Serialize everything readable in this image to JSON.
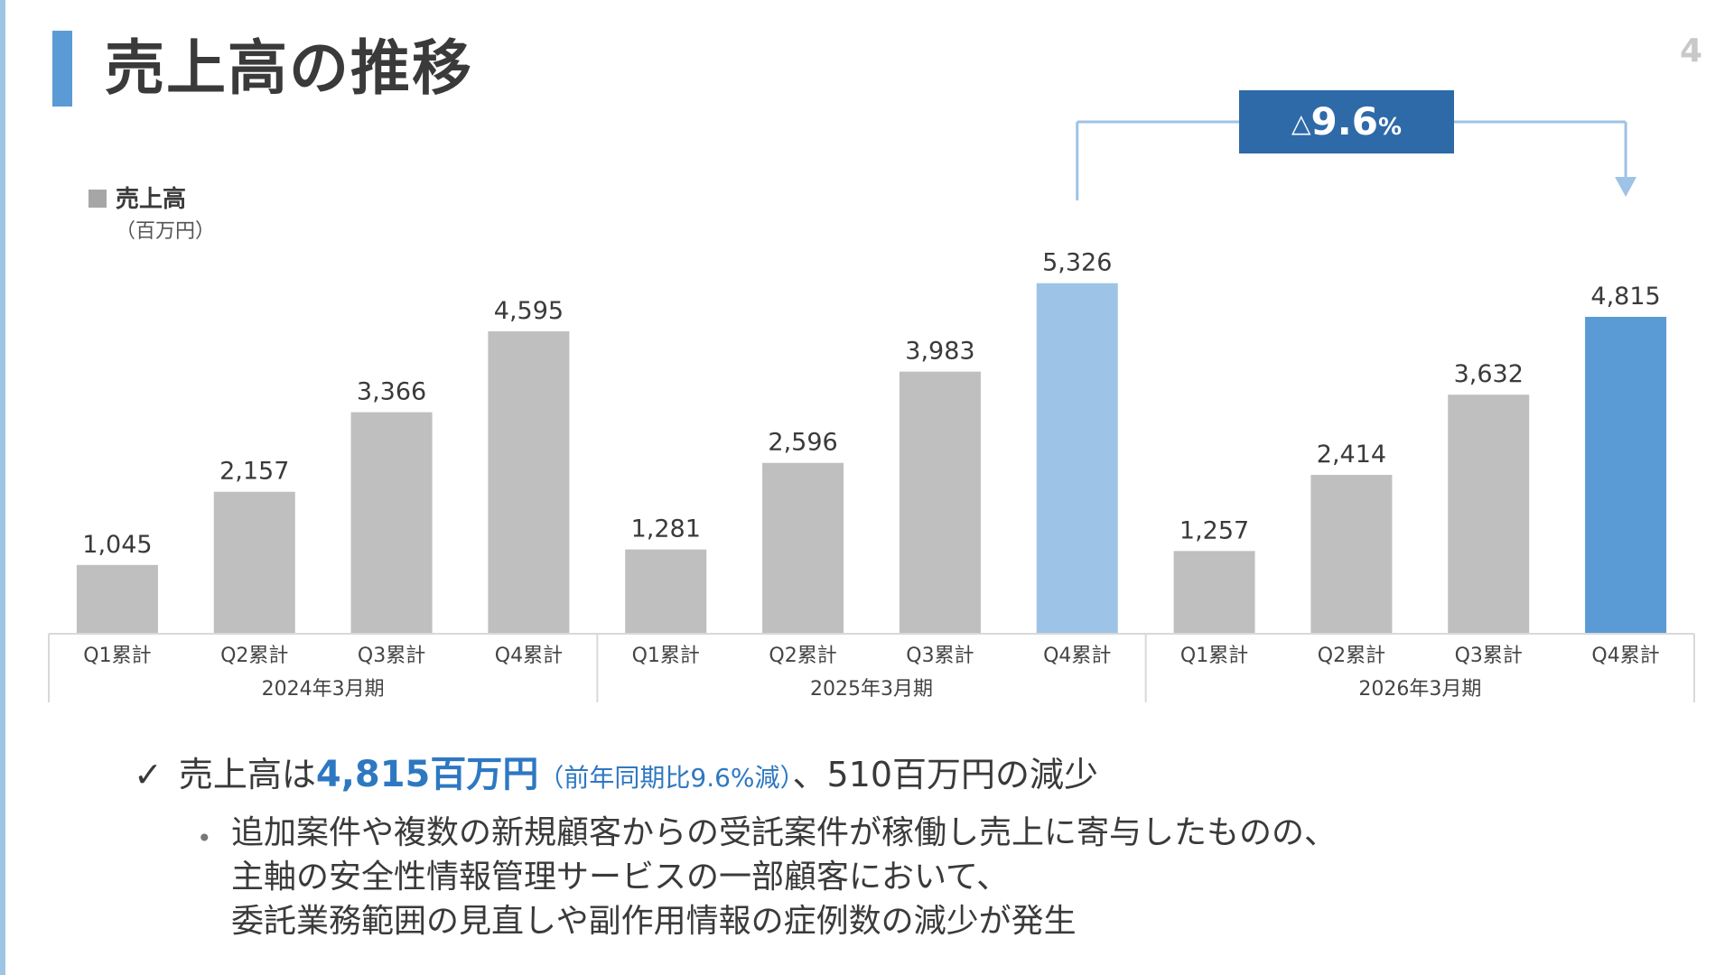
{
  "page": {
    "title": "売上高の推移",
    "page_number": "4"
  },
  "legend": {
    "label": "売上高",
    "unit": "（百万円）",
    "color": "#a6a6a6"
  },
  "colors": {
    "bar_default": "#bfbfbf",
    "bar_prev_q4": "#9dc3e6",
    "bar_current_q4": "#5b9bd5",
    "change_box": "#2e6aa8",
    "highlight_text": "#2e78c2",
    "connector": "#9dc3e6"
  },
  "change_callout": {
    "delta_symbol": "△",
    "value": "9.6",
    "percent": "%"
  },
  "chart_data": {
    "type": "bar",
    "title": "",
    "xlabel": "",
    "ylabel": "",
    "unit": "百万円",
    "ylim": [
      0,
      6200
    ],
    "groups": [
      {
        "label": "2024年3月期",
        "categories": [
          "Q1累計",
          "Q2累計",
          "Q3累計",
          "Q4累計"
        ],
        "values": [
          1045,
          2157,
          3366,
          4595
        ],
        "value_labels": [
          "1,045",
          "2,157",
          "3,366",
          "4,595"
        ]
      },
      {
        "label": "2025年3月期",
        "categories": [
          "Q1累計",
          "Q2累計",
          "Q3累計",
          "Q4累計"
        ],
        "values": [
          1281,
          2596,
          3983,
          5326
        ],
        "value_labels": [
          "1,281",
          "2,596",
          "3,983",
          "5,326"
        ]
      },
      {
        "label": "2026年3月期",
        "categories": [
          "Q1累計",
          "Q2累計",
          "Q3累計",
          "Q4累計"
        ],
        "values": [
          1257,
          2414,
          3632,
          4815
        ],
        "value_labels": [
          "1,257",
          "2,414",
          "3,632",
          "4,815"
        ]
      }
    ],
    "series": [
      {
        "name": "売上高"
      }
    ],
    "legend": "top-left",
    "grid": false
  },
  "summary": {
    "check": "✓",
    "prefix": "売上高は",
    "highlight": "4,815百万円",
    "paren": "（前年同期比9.6%減）",
    "suffix": "、510百万円の減少"
  },
  "detail": {
    "bullet": "•",
    "lines": [
      "追加案件や複数の新規顧客からの受託案件が稼働し売上に寄与したものの、",
      "主軸の安全性情報管理サービスの一部顧客において、",
      "委託業務範囲の見直しや副作用情報の症例数の減少が発生"
    ]
  }
}
